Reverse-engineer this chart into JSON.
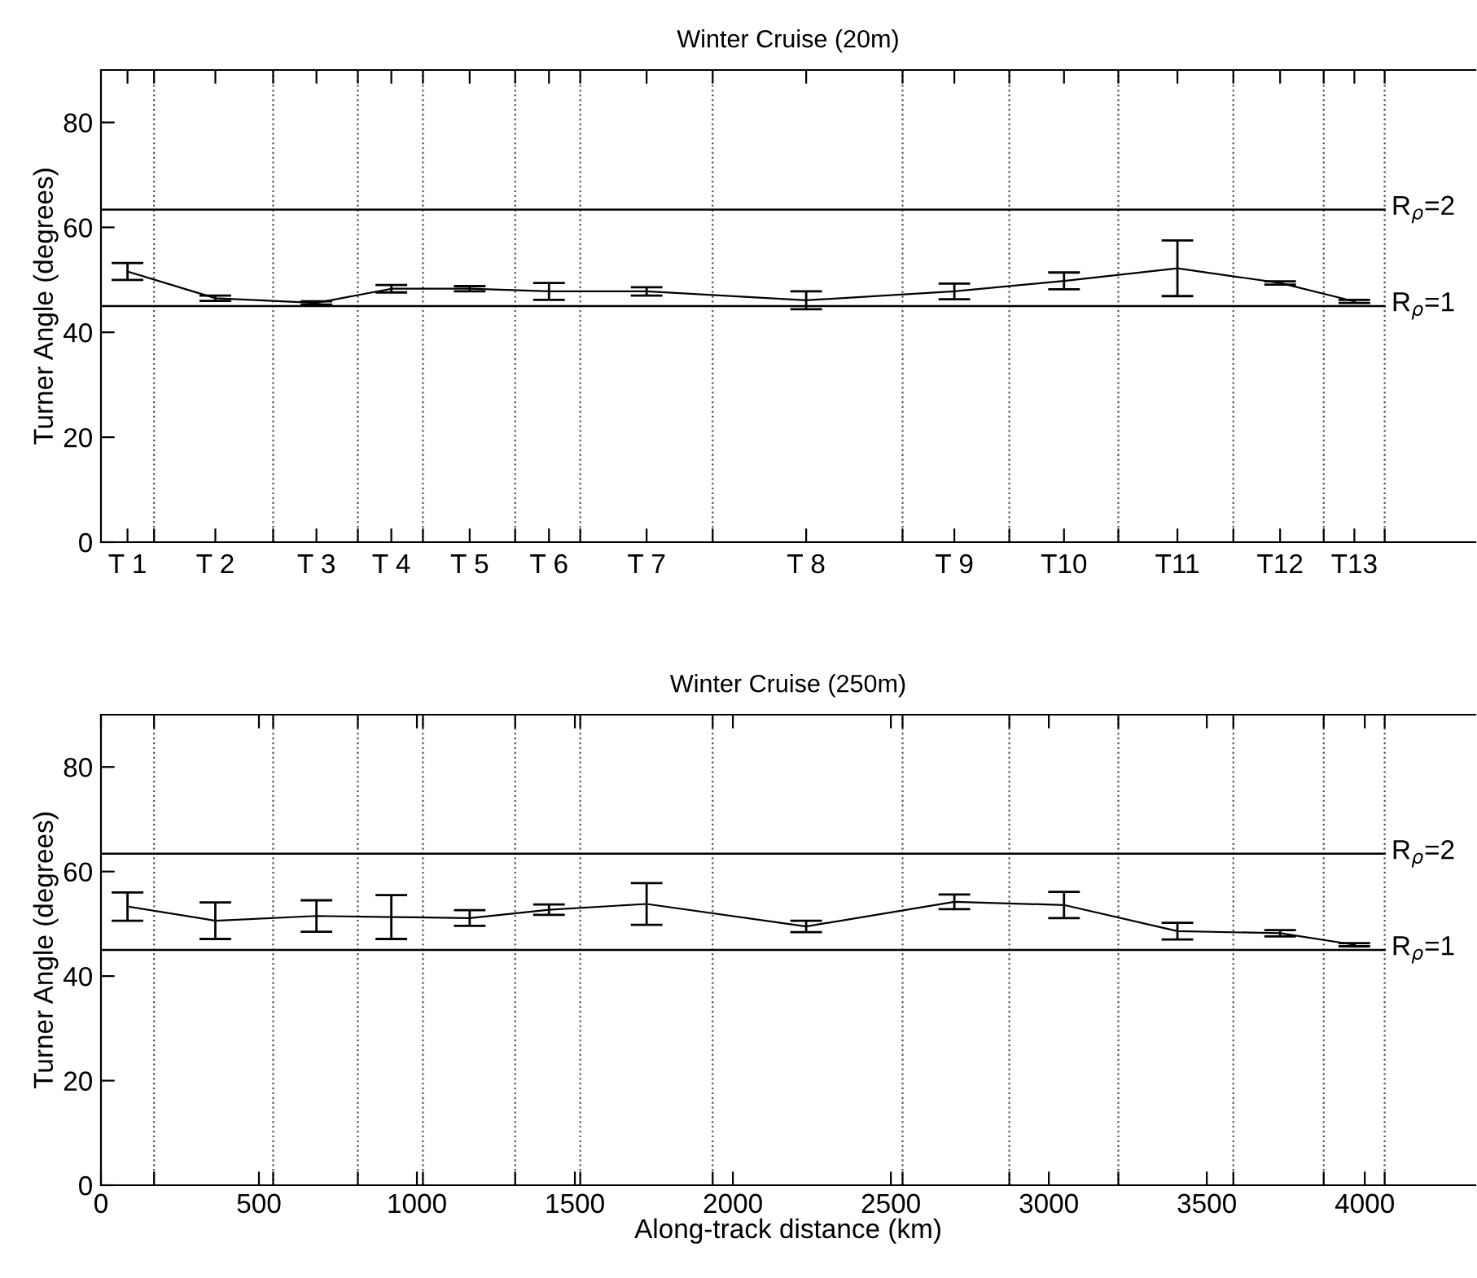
{
  "chart_data": [
    {
      "type": "line",
      "title": "Winter Cruise (20m)",
      "ylabel": "Turner Angle (degrees)",
      "x": [
        84,
        362,
        682,
        919,
        1167,
        1418,
        1727,
        2232,
        2701,
        3048,
        3407,
        3732,
        3967
      ],
      "series": [
        {
          "color": "#000000",
          "values": [
            51.6,
            46.5,
            45.6,
            48.3,
            48.3,
            47.8,
            47.8,
            46.1,
            47.8,
            49.8,
            52.2,
            49.4,
            45.9
          ],
          "errors": [
            1.6,
            0.5,
            0.3,
            0.7,
            0.5,
            1.6,
            0.8,
            1.7,
            1.5,
            1.6,
            5.3,
            0.3,
            0.3
          ]
        }
      ],
      "xlim": [
        0,
        4350
      ],
      "ylim": [
        0,
        90
      ],
      "yticks": [
        0,
        20,
        40,
        60,
        80
      ],
      "tick_labels": "y",
      "annotations": [
        "T 1",
        "T 2",
        "T 3",
        "T 4",
        "T 5",
        "T 6",
        "T 7",
        "T 8",
        "T 9",
        "T10",
        "T11",
        "T12",
        "T13",
        "R$_{ρ}$=2",
        "R$_{ρ}$=1"
      ],
      "xticks": [
        {
          "value": 84,
          "label": null
        },
        {
          "value": 362,
          "label": null
        },
        {
          "value": 682,
          "label": null
        },
        {
          "value": 919,
          "label": null
        },
        {
          "value": 1167,
          "label": null
        },
        {
          "value": 1418,
          "label": null
        },
        {
          "value": 1727,
          "label": null
        },
        {
          "value": 2232,
          "label": null
        },
        {
          "value": 2701,
          "label": null
        },
        {
          "value": 3048,
          "label": null
        },
        {
          "value": 3407,
          "label": null
        },
        {
          "value": 3732,
          "label": null
        },
        {
          "value": 3967,
          "label": null
        },
        {
          "value": 168,
          "label": null
        },
        {
          "value": 545,
          "label": null
        },
        {
          "value": 813,
          "label": null
        },
        {
          "value": 1019,
          "label": null
        },
        {
          "value": 1311,
          "label": null
        },
        {
          "value": 1517,
          "label": null
        },
        {
          "value": 1936,
          "label": null
        },
        {
          "value": 2537,
          "label": null
        },
        {
          "value": 2875,
          "label": null
        },
        {
          "value": 3220,
          "label": null
        },
        {
          "value": 3584,
          "label": null
        },
        {
          "value": 3870,
          "label": null
        },
        {
          "value": 4063,
          "label": null
        }
      ],
      "ref_lines": [
        {
          "axis": "y",
          "value": 63.4,
          "color": "#000000",
          "line_style": "solid"
        },
        {
          "axis": "y",
          "value": 45,
          "color": "#000000",
          "line_style": "solid"
        },
        {
          "axis": "x",
          "value": 168,
          "line_style": "dotted"
        },
        {
          "axis": "x",
          "value": 545,
          "line_style": "dotted"
        },
        {
          "axis": "x",
          "value": 813,
          "line_style": "dotted"
        },
        {
          "axis": "x",
          "value": 1019,
          "line_style": "dotted"
        },
        {
          "axis": "x",
          "value": 1311,
          "line_style": "dotted"
        },
        {
          "axis": "x",
          "value": 1517,
          "line_style": "dotted"
        },
        {
          "axis": "x",
          "value": 1936,
          "line_style": "dotted"
        },
        {
          "axis": "x",
          "value": 2537,
          "line_style": "dotted"
        },
        {
          "axis": "x",
          "value": 2875,
          "line_style": "dotted"
        },
        {
          "axis": "x",
          "value": 3220,
          "line_style": "dotted"
        },
        {
          "axis": "x",
          "value": 3584,
          "line_style": "dotted"
        },
        {
          "axis": "x",
          "value": 3870,
          "line_style": "dotted"
        },
        {
          "axis": "x",
          "value": 4063,
          "line_style": "dotted"
        }
      ],
      "marker": "none",
      "line_style": "solid",
      "grid": false,
      "legend": false
    },
    {
      "type": "line",
      "title": "Winter Cruise (250m)",
      "annotations": [
        "R$_{ρ}$=2",
        "R$_{ρ}$=1"
      ],
      "ylabel": "Turner Angle (degrees)",
      "xlabel": "Along-track distance (km)",
      "x": [
        84,
        362,
        682,
        919,
        1167,
        1418,
        1727,
        2232,
        2701,
        3048,
        3407,
        3732,
        3967
      ],
      "series": [
        {
          "color": "#000000",
          "values": [
            53.3,
            50.6,
            51.5,
            51.3,
            51.1,
            52.7,
            53.8,
            49.5,
            54.2,
            53.6,
            48.6,
            48.2,
            46.0
          ],
          "errors": [
            2.7,
            3.5,
            3.0,
            4.2,
            1.5,
            1.0,
            4.0,
            1.1,
            1.4,
            2.5,
            1.6,
            0.6,
            0.3
          ]
        }
      ],
      "xlim": [
        0,
        4350
      ],
      "ylim": [
        0,
        90
      ],
      "yticks": [
        0,
        20,
        40,
        60,
        80
      ],
      "xticks": [
        0,
        500,
        1000,
        1500,
        2000,
        2500,
        3000,
        3500,
        4000,
        {
          "value": 168,
          "label": null
        },
        {
          "value": 545,
          "label": null
        },
        {
          "value": 813,
          "label": null
        },
        {
          "value": 1019,
          "label": null
        },
        {
          "value": 1311,
          "label": null
        },
        {
          "value": 1517,
          "label": null
        },
        {
          "value": 1936,
          "label": null
        },
        {
          "value": 2537,
          "label": null
        },
        {
          "value": 2875,
          "label": null
        },
        {
          "value": 3220,
          "label": null
        },
        {
          "value": 3584,
          "label": null
        },
        {
          "value": 3870,
          "label": null
        },
        {
          "value": 4063,
          "label": null
        }
      ],
      "ref_lines": [
        {
          "axis": "y",
          "value": 63.4,
          "color": "#000000",
          "line_style": "solid"
        },
        {
          "axis": "y",
          "value": 45,
          "color": "#000000",
          "line_style": "solid"
        },
        {
          "axis": "x",
          "value": 168,
          "line_style": "dotted"
        },
        {
          "axis": "x",
          "value": 545,
          "line_style": "dotted"
        },
        {
          "axis": "x",
          "value": 813,
          "line_style": "dotted"
        },
        {
          "axis": "x",
          "value": 1019,
          "line_style": "dotted"
        },
        {
          "axis": "x",
          "value": 1311,
          "line_style": "dotted"
        },
        {
          "axis": "x",
          "value": 1517,
          "line_style": "dotted"
        },
        {
          "axis": "x",
          "value": 1936,
          "line_style": "dotted"
        },
        {
          "axis": "x",
          "value": 2537,
          "line_style": "dotted"
        },
        {
          "axis": "x",
          "value": 2875,
          "line_style": "dotted"
        },
        {
          "axis": "x",
          "value": 3220,
          "line_style": "dotted"
        },
        {
          "axis": "x",
          "value": 3584,
          "line_style": "dotted"
        },
        {
          "axis": "x",
          "value": 3870,
          "line_style": "dotted"
        },
        {
          "axis": "x",
          "value": 4063,
          "line_style": "dotted"
        }
      ],
      "marker": "none",
      "line_style": "solid",
      "grid": false,
      "legend": false
    }
  ]
}
